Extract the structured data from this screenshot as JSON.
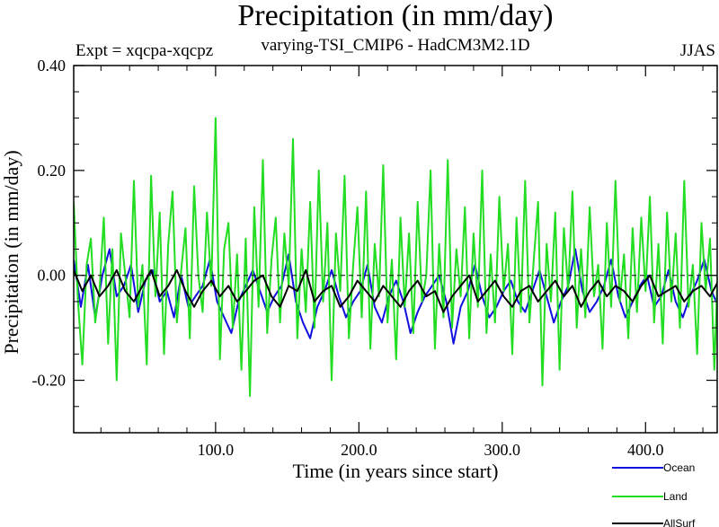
{
  "title": "Precipitation (in mm/day)",
  "subtitle_left": "Expt = xqcpa-xqcpz",
  "subtitle_center": "varying-TSI_CMIP6 - HadCM3M2.1D",
  "subtitle_right": "JJAS",
  "chart_data": {
    "type": "line",
    "xlabel": "Time (in years since start)",
    "ylabel": "Precipitation (in mm/day)",
    "xlim": [
      1,
      450
    ],
    "ylim": [
      -0.3,
      0.4
    ],
    "x_ticks": [
      100,
      200,
      300,
      400
    ],
    "x_tick_labels": [
      "100.0",
      "200.0",
      "300.0",
      "400.0"
    ],
    "y_ticks": [
      -0.2,
      0.0,
      0.2,
      0.4
    ],
    "y_tick_labels": [
      "-0.20",
      "0.00",
      "0.20",
      "0.40"
    ],
    "zero_line": true,
    "grid": false,
    "legend_position": "bottom-right",
    "series": [
      {
        "name": "Ocean",
        "color": "#1010e0",
        "x_start": 1,
        "x_step": 5,
        "values": [
          0.03,
          -0.06,
          0.02,
          -0.08,
          0.0,
          0.05,
          -0.04,
          -0.02,
          0.02,
          -0.07,
          -0.01,
          0.01,
          -0.05,
          -0.03,
          -0.08,
          0.0,
          -0.06,
          -0.04,
          -0.02,
          0.03,
          -0.05,
          -0.08,
          -0.11,
          -0.05,
          -0.02,
          0.01,
          -0.03,
          -0.07,
          -0.04,
          -0.02,
          0.04,
          -0.05,
          -0.09,
          -0.12,
          -0.06,
          -0.03,
          0.01,
          -0.04,
          -0.08,
          -0.05,
          -0.03,
          0.02,
          -0.06,
          -0.09,
          -0.04,
          -0.01,
          -0.05,
          -0.11,
          -0.07,
          -0.04,
          -0.02,
          0.0,
          -0.05,
          -0.13,
          -0.06,
          -0.03,
          0.02,
          -0.04,
          -0.08,
          -0.06,
          -0.03,
          -0.01,
          -0.05,
          -0.07,
          -0.03,
          0.01,
          -0.04,
          -0.09,
          -0.05,
          -0.02,
          0.05,
          -0.03,
          -0.07,
          -0.05,
          -0.02,
          0.03,
          -0.04,
          -0.08,
          -0.05,
          -0.02,
          0.0,
          -0.06,
          -0.04,
          0.01,
          -0.05,
          -0.08,
          -0.04,
          -0.01,
          0.03,
          -0.03,
          -0.06
        ]
      },
      {
        "name": "Land",
        "color": "#22dd22",
        "x_start": 1,
        "x_step": 3,
        "values": [
          0.14,
          -0.05,
          -0.17,
          0.02,
          0.07,
          -0.09,
          -0.03,
          0.11,
          -0.13,
          0.05,
          -0.2,
          0.08,
          0.0,
          -0.08,
          0.18,
          -0.06,
          0.02,
          -0.17,
          0.19,
          -0.04,
          0.12,
          -0.15,
          0.06,
          0.16,
          -0.09,
          0.01,
          0.09,
          -0.12,
          0.17,
          0.0,
          -0.07,
          0.12,
          -0.02,
          0.3,
          -0.16,
          0.05,
          0.1,
          -0.1,
          0.04,
          -0.18,
          0.07,
          -0.23,
          0.13,
          -0.06,
          0.22,
          -0.11,
          0.03,
          0.11,
          -0.09,
          0.08,
          -0.02,
          0.26,
          -0.12,
          0.05,
          -0.07,
          0.14,
          -0.1,
          0.2,
          -0.05,
          0.1,
          -0.2,
          0.08,
          -0.03,
          0.19,
          -0.12,
          0.02,
          0.13,
          -0.08,
          0.16,
          -0.14,
          0.06,
          -0.04,
          0.21,
          -0.09,
          0.03,
          -0.16,
          0.11,
          -0.06,
          0.08,
          -0.11,
          0.14,
          -0.05,
          0.0,
          0.2,
          -0.14,
          0.06,
          -0.08,
          0.22,
          -0.1,
          0.05,
          -0.04,
          0.13,
          -0.12,
          0.08,
          -0.06,
          0.2,
          -0.11,
          0.04,
          -0.09,
          0.15,
          -0.03,
          0.06,
          -0.15,
          0.11,
          -0.07,
          0.18,
          -0.09,
          0.03,
          0.14,
          -0.21,
          0.06,
          -0.05,
          0.12,
          -0.18,
          0.09,
          -0.03,
          0.16,
          -0.1,
          0.05,
          -0.08,
          0.13,
          -0.04,
          0.02,
          -0.14,
          0.1,
          -0.06,
          0.18,
          -0.05,
          0.04,
          -0.12,
          0.09,
          -0.07,
          0.11,
          -0.03,
          0.15,
          -0.09,
          0.06,
          -0.13,
          0.12,
          -0.05,
          0.08,
          -0.1,
          0.18,
          -0.06,
          0.02,
          -0.15,
          0.1,
          -0.03,
          0.07,
          -0.18,
          0.06,
          -0.08,
          0.13
        ]
      },
      {
        "name": "AllSurf",
        "color": "#000000",
        "x_start": 1,
        "x_step": 6,
        "values": [
          0.01,
          -0.03,
          0.0,
          -0.04,
          -0.02,
          0.01,
          -0.03,
          -0.05,
          -0.02,
          0.01,
          -0.04,
          -0.02,
          0.01,
          -0.03,
          -0.06,
          -0.03,
          -0.01,
          -0.04,
          -0.02,
          -0.05,
          -0.03,
          -0.01,
          0.0,
          -0.04,
          -0.06,
          -0.02,
          -0.03,
          0.01,
          -0.05,
          -0.03,
          -0.02,
          -0.06,
          -0.04,
          -0.01,
          -0.03,
          -0.05,
          -0.02,
          -0.04,
          -0.06,
          -0.03,
          -0.01,
          -0.04,
          -0.03,
          -0.07,
          -0.04,
          -0.02,
          0.0,
          -0.05,
          -0.03,
          -0.01,
          -0.04,
          -0.06,
          -0.03,
          -0.02,
          -0.05,
          -0.03,
          -0.01,
          -0.04,
          -0.02,
          -0.06,
          -0.03,
          -0.01,
          -0.04,
          -0.02,
          -0.03,
          -0.05,
          -0.02,
          0.0,
          -0.04,
          -0.03,
          -0.02,
          -0.05,
          -0.03,
          -0.02,
          -0.04,
          -0.01
        ]
      }
    ]
  }
}
